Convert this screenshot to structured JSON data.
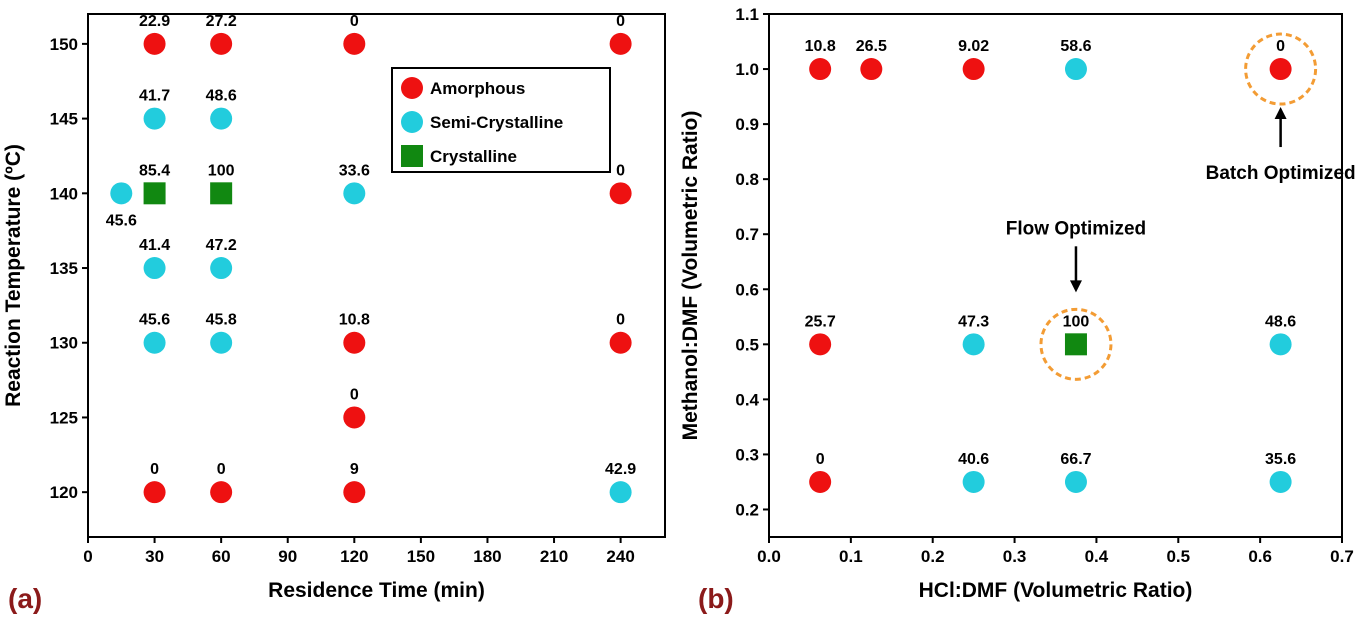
{
  "colors": {
    "amorphous": "#ee1111",
    "semi_crystalline": "#22ccdd",
    "crystalline": "#118811",
    "highlight": "#f39c34",
    "panel_tag": "#8b1a1a"
  },
  "chart_data": [
    {
      "type": "scatter",
      "panel_tag": "(a)",
      "xlabel": "Residence Time (min)",
      "ylabel": "Reaction Temperature (ºC)",
      "xlim": [
        0,
        260
      ],
      "ylim": [
        117,
        152
      ],
      "xticks": [
        0,
        30,
        60,
        90,
        120,
        150,
        180,
        210,
        240
      ],
      "yticks": [
        120,
        125,
        130,
        135,
        140,
        145,
        150
      ],
      "legend": {
        "placement": "top-right",
        "entries": [
          {
            "key": "amorphous",
            "label": "Amorphous",
            "marker": "circle"
          },
          {
            "key": "semi_crystalline",
            "label": "Semi-Crystalline",
            "marker": "circle"
          },
          {
            "key": "crystalline",
            "label": "Crystalline",
            "marker": "square"
          }
        ]
      },
      "points": [
        {
          "x": 30,
          "y": 150,
          "class": "amorphous",
          "label": "22.9"
        },
        {
          "x": 60,
          "y": 150,
          "class": "amorphous",
          "label": "27.2"
        },
        {
          "x": 120,
          "y": 150,
          "class": "amorphous",
          "label": "0"
        },
        {
          "x": 240,
          "y": 150,
          "class": "amorphous",
          "label": "0"
        },
        {
          "x": 30,
          "y": 145,
          "class": "semi_crystalline",
          "label": "41.7"
        },
        {
          "x": 60,
          "y": 145,
          "class": "semi_crystalline",
          "label": "48.6"
        },
        {
          "x": 15,
          "y": 140,
          "class": "semi_crystalline",
          "label": "45.6",
          "label_pos": "below"
        },
        {
          "x": 30,
          "y": 140,
          "class": "crystalline",
          "label": "85.4"
        },
        {
          "x": 60,
          "y": 140,
          "class": "crystalline",
          "label": "100"
        },
        {
          "x": 120,
          "y": 140,
          "class": "semi_crystalline",
          "label": "33.6"
        },
        {
          "x": 240,
          "y": 140,
          "class": "amorphous",
          "label": "0"
        },
        {
          "x": 30,
          "y": 135,
          "class": "semi_crystalline",
          "label": "41.4"
        },
        {
          "x": 60,
          "y": 135,
          "class": "semi_crystalline",
          "label": "47.2"
        },
        {
          "x": 30,
          "y": 130,
          "class": "semi_crystalline",
          "label": "45.6"
        },
        {
          "x": 60,
          "y": 130,
          "class": "semi_crystalline",
          "label": "45.8"
        },
        {
          "x": 120,
          "y": 130,
          "class": "amorphous",
          "label": "10.8"
        },
        {
          "x": 240,
          "y": 130,
          "class": "amorphous",
          "label": "0"
        },
        {
          "x": 120,
          "y": 125,
          "class": "amorphous",
          "label": "0"
        },
        {
          "x": 30,
          "y": 120,
          "class": "amorphous",
          "label": "0"
        },
        {
          "x": 60,
          "y": 120,
          "class": "amorphous",
          "label": "0"
        },
        {
          "x": 120,
          "y": 120,
          "class": "amorphous",
          "label": "9"
        },
        {
          "x": 240,
          "y": 120,
          "class": "semi_crystalline",
          "label": "42.9"
        }
      ]
    },
    {
      "type": "scatter",
      "panel_tag": "(b)",
      "xlabel": "HCl:DMF (Volumetric Ratio)",
      "ylabel": "Methanol:DMF (Volumetric Ratio)",
      "xlim": [
        0.0,
        0.7
      ],
      "ylim": [
        0.15,
        1.1
      ],
      "xticks": [
        "0.0",
        "0.1",
        "0.2",
        "0.3",
        "0.4",
        "0.5",
        "0.6",
        "0.7"
      ],
      "yticks": [
        "0.2",
        "0.3",
        "0.4",
        "0.5",
        "0.6",
        "0.7",
        "0.8",
        "0.9",
        "1.0",
        "1.1"
      ],
      "points": [
        {
          "x": 0.0625,
          "y": 1.0,
          "class": "amorphous",
          "label": "10.8"
        },
        {
          "x": 0.125,
          "y": 1.0,
          "class": "amorphous",
          "label": "26.5"
        },
        {
          "x": 0.25,
          "y": 1.0,
          "class": "amorphous",
          "label": "9.02"
        },
        {
          "x": 0.375,
          "y": 1.0,
          "class": "semi_crystalline",
          "label": "58.6"
        },
        {
          "x": 0.625,
          "y": 1.0,
          "class": "amorphous",
          "label": "0",
          "highlight": true
        },
        {
          "x": 0.0625,
          "y": 0.5,
          "class": "amorphous",
          "label": "25.7"
        },
        {
          "x": 0.25,
          "y": 0.5,
          "class": "semi_crystalline",
          "label": "47.3"
        },
        {
          "x": 0.375,
          "y": 0.5,
          "class": "crystalline",
          "label": "100",
          "highlight": true
        },
        {
          "x": 0.625,
          "y": 0.5,
          "class": "semi_crystalline",
          "label": "48.6"
        },
        {
          "x": 0.0625,
          "y": 0.25,
          "class": "amorphous",
          "label": "0"
        },
        {
          "x": 0.25,
          "y": 0.25,
          "class": "semi_crystalline",
          "label": "40.6"
        },
        {
          "x": 0.375,
          "y": 0.25,
          "class": "semi_crystalline",
          "label": "66.7"
        },
        {
          "x": 0.625,
          "y": 0.25,
          "class": "semi_crystalline",
          "label": "35.6"
        }
      ],
      "annotations": [
        {
          "text": "Batch Optimized",
          "x": 0.625,
          "y": 1.0,
          "placement": "below"
        },
        {
          "text": "Flow Optimized",
          "x": 0.375,
          "y": 0.5,
          "placement": "above"
        }
      ]
    }
  ]
}
